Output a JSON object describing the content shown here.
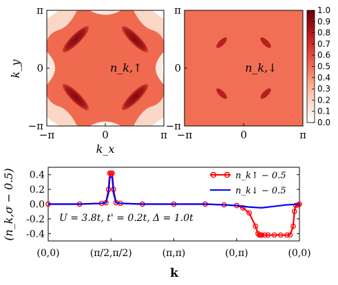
{
  "chart_data": [
    {
      "type": "heatmap",
      "panel": "n_up",
      "label": "n_k,↑",
      "xlabel": "k_x",
      "ylabel": "k_y",
      "xlim": [
        "-π",
        "π"
      ],
      "ylim": [
        "-π",
        "π"
      ],
      "x_ticks": [
        "−π",
        "0",
        "π"
      ],
      "y_ticks": [
        "−π",
        "0",
        "π"
      ],
      "background_value": 0.5,
      "features": [
        {
          "kind": "pocket",
          "value": 1.0
        },
        {
          "kind": "corner",
          "value": 0.0
        }
      ]
    },
    {
      "type": "heatmap",
      "panel": "n_down",
      "label": "n_k,↓",
      "xlim": [
        "-π",
        "π"
      ],
      "ylim": [
        "-π",
        "π"
      ],
      "x_ticks": [
        "−π",
        "0",
        "π"
      ],
      "background_value": 0.5,
      "colorbar": {
        "range": [
          0.0,
          1.0
        ],
        "ticks": [
          "0.0",
          "0.1",
          "0.2",
          "0.3",
          "0.4",
          "0.5",
          "0.6",
          "0.7",
          "0.8",
          "0.9",
          "1.0"
        ],
        "color_low": "#ffffff",
        "color_mid": "#f26d52",
        "color_high": "#67000d"
      }
    },
    {
      "type": "line",
      "xlabel": "k",
      "ylabel": "(n_k,σ − 0.5)",
      "x_ticks": [
        "(0,0)",
        "(π/2,π/2)",
        "(π,π)",
        "(0,π)",
        "(0,0)"
      ],
      "x_tick_pos": [
        0,
        1,
        2,
        3,
        4
      ],
      "y_ticks": [
        "0.4",
        "0.2",
        "0.0",
        "-0.2",
        "-0.4"
      ],
      "ylim": [
        -0.5,
        0.5
      ],
      "annotation": "U = 3.8t, t' = 0.2t, Δ = 1.0t",
      "legend_position": "top-right",
      "series": [
        {
          "name": "n_k↑ − 0.5",
          "color": "#ff0000",
          "marker": "o",
          "x": [
            0.0,
            0.5,
            0.85,
            0.92,
            0.96,
            0.98,
            1.0,
            1.02,
            1.04,
            1.08,
            1.15,
            1.5,
            2.0,
            2.5,
            2.8,
            3.0,
            3.1,
            3.2,
            3.3,
            3.34,
            3.36,
            3.38,
            3.4,
            3.45,
            3.5,
            3.6,
            3.7,
            3.8,
            3.85,
            3.9,
            3.92,
            3.94,
            3.98,
            4.0
          ],
          "y": [
            0.0,
            0.0,
            0.01,
            0.02,
            0.2,
            0.42,
            0.42,
            0.42,
            0.2,
            0.02,
            0.01,
            0.0,
            0.0,
            0.0,
            -0.01,
            -0.02,
            -0.05,
            -0.12,
            -0.3,
            -0.4,
            -0.42,
            -0.42,
            -0.42,
            -0.42,
            -0.42,
            -0.42,
            -0.42,
            -0.42,
            -0.42,
            -0.3,
            -0.1,
            -0.02,
            -0.01,
            0.0
          ]
        },
        {
          "name": "n_k↓ − 0.5",
          "color": "#0000ff",
          "marker": "",
          "x": [
            0.0,
            0.5,
            0.85,
            0.92,
            0.96,
            0.98,
            1.0,
            1.02,
            1.04,
            1.08,
            1.15,
            1.5,
            2.0,
            2.5,
            2.8,
            3.0,
            3.2,
            3.4,
            3.6,
            3.8,
            4.0
          ],
          "y": [
            0.0,
            0.0,
            0.01,
            0.02,
            0.15,
            0.36,
            0.37,
            0.36,
            0.15,
            0.02,
            0.01,
            0.0,
            0.0,
            0.0,
            -0.01,
            -0.02,
            -0.04,
            -0.05,
            -0.03,
            -0.01,
            0.0
          ]
        }
      ]
    }
  ]
}
